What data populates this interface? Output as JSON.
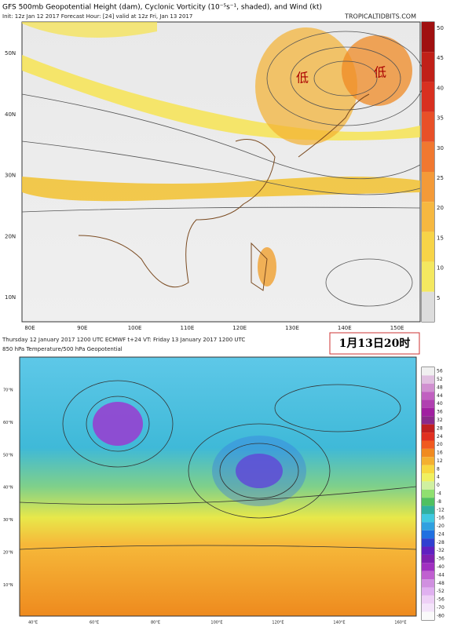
{
  "top": {
    "title": "GFS 500mb Geopotential Height (dam), Cyclonic Vorticity (10⁻⁵s⁻¹, shaded), and Wind (kt)",
    "subtitle": "Init: 12z Jan 12 2017   Forecast Hour: [24]   valid at 12z Fri, Jan 13 2017",
    "watermark": "TROPICALTIDBITS.COM",
    "lat_labels": [
      "50N",
      "40N",
      "30N",
      "20N",
      "10N"
    ],
    "lon_labels": [
      "80E",
      "90E",
      "100E",
      "110E",
      "120E",
      "130E",
      "140E",
      "150E"
    ],
    "low_labels": [
      "低",
      "低"
    ],
    "colorbar": [
      50,
      45,
      40,
      35,
      30,
      25,
      20,
      15,
      10,
      5
    ]
  },
  "bottom": {
    "header": [
      "Thursday 12 January 2017 1200 UTC  ECMWF  t+24  VT: Friday 13 January 2017 1200 UTC",
      "850 hPa Temperature/500 hPa Geopotential"
    ],
    "badge": "1月13日20时",
    "lat_labels": [
      "70°N",
      "60°N",
      "50°N",
      "40°N",
      "30°N",
      "20°N",
      "10°N"
    ],
    "lon_labels": [
      "40°E",
      "60°E",
      "80°E",
      "100°E",
      "120°E",
      "140°E",
      "160°E"
    ],
    "colorbar": [
      56,
      52,
      48,
      44,
      40,
      36,
      32,
      28,
      24,
      20,
      16,
      12,
      8,
      4,
      0,
      -4,
      -8,
      -12,
      -16,
      -20,
      -24,
      -28,
      -32,
      -36,
      -40,
      -44,
      -48,
      -52,
      -56,
      -70,
      -80
    ]
  }
}
